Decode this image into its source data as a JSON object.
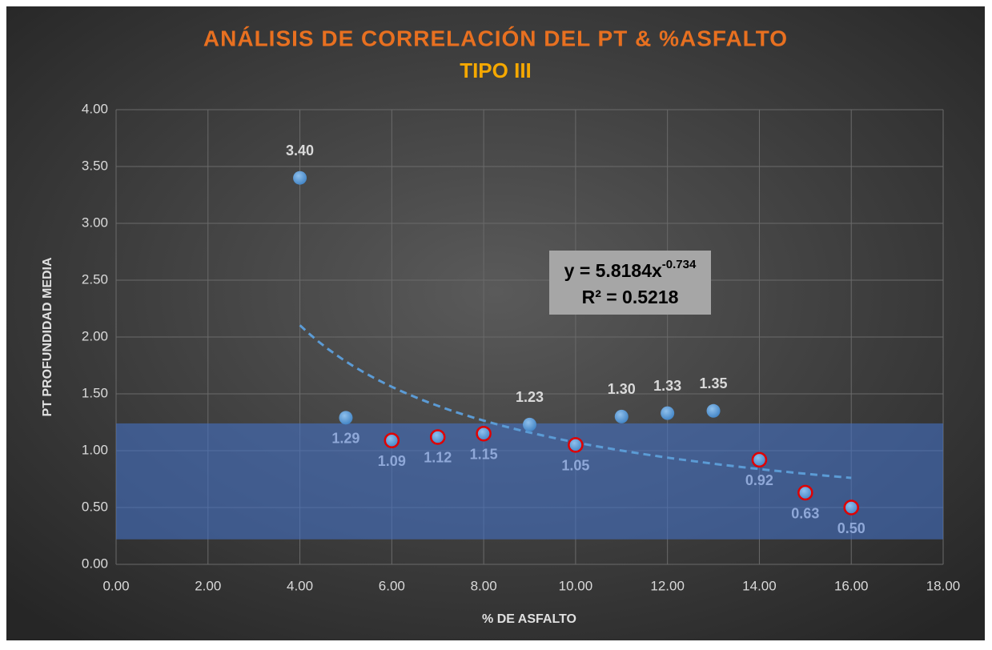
{
  "chart_data": {
    "type": "scatter",
    "title": "ANÁLISIS DE CORRELACIÓN DEL PT & %ASFALTO",
    "subtitle": "TIPO III",
    "x_label": "% DE ASFALTO",
    "y_label": "PT PROFUNDIDAD MEDIA",
    "x": [
      4,
      5,
      6,
      7,
      8,
      9,
      10,
      11,
      12,
      13,
      14,
      15,
      16
    ],
    "values": [
      3.4,
      1.29,
      1.09,
      1.12,
      1.15,
      1.23,
      1.05,
      1.3,
      1.33,
      1.35,
      0.92,
      0.63,
      0.5
    ],
    "value_labels": [
      "3.40",
      "1.29",
      "1.09",
      "1.12",
      "1.15",
      "1.23",
      "1.05",
      "1.30",
      "1.33",
      "1.35",
      "0.92",
      "0.63",
      "0.50"
    ],
    "label_position": [
      "above",
      "below",
      "below",
      "below",
      "below",
      "above",
      "below",
      "above",
      "above",
      "above",
      "below",
      "below",
      "below"
    ],
    "highlight": [
      false,
      false,
      true,
      true,
      true,
      false,
      true,
      false,
      false,
      false,
      true,
      true,
      true
    ],
    "color": "#5b9bd5",
    "highlight_color": "#e00000",
    "band": {
      "ymin": 0.22,
      "ymax": 1.24,
      "color": "#4472c4"
    },
    "trendline": {
      "coefficient": 5.8184,
      "exponent": -0.734,
      "xrange": [
        4,
        16
      ],
      "equation": "y = 5.8184x",
      "equation_exponent": "-0.734",
      "r2": "R² = 0.5218"
    },
    "xlim": [
      0,
      18
    ],
    "xticks": [
      {
        "value": 0,
        "label": "0.00"
      },
      {
        "value": 2,
        "label": "2.00"
      },
      {
        "value": 4,
        "label": "4.00"
      },
      {
        "value": 6,
        "label": "6.00"
      },
      {
        "value": 8,
        "label": "8.00"
      },
      {
        "value": 10,
        "label": "10.00"
      },
      {
        "value": 12,
        "label": "12.00"
      },
      {
        "value": 14,
        "label": "14.00"
      },
      {
        "value": 16,
        "label": "16.00"
      },
      {
        "value": 18,
        "label": "18.00"
      }
    ],
    "ylim": [
      0,
      4
    ],
    "yticks": [
      {
        "value": 0,
        "label": "0.00"
      },
      {
        "value": 0.5,
        "label": "0.50"
      },
      {
        "value": 1,
        "label": "1.00"
      },
      {
        "value": 1.5,
        "label": "1.50"
      },
      {
        "value": 2,
        "label": "2.00"
      },
      {
        "value": 2.5,
        "label": "2.50"
      },
      {
        "value": 3,
        "label": "3.00"
      },
      {
        "value": 3.5,
        "label": "3.50"
      },
      {
        "value": 4,
        "label": "4.00"
      }
    ],
    "grid": true
  }
}
